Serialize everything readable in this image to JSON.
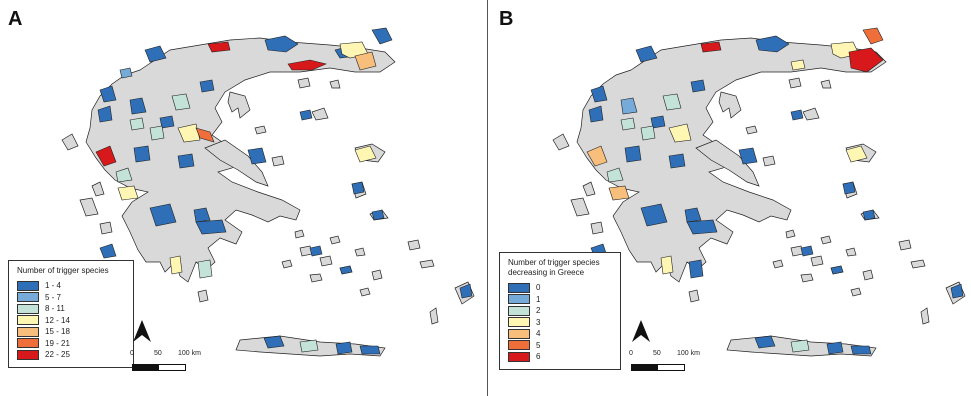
{
  "panels": [
    {
      "letter": "A",
      "legend": {
        "title_lines": [
          "Number of trigger species"
        ],
        "classes": [
          {
            "label": "1 - 4",
            "color": "#2f6fb7"
          },
          {
            "label": "5 - 7",
            "color": "#76aad8"
          },
          {
            "label": "8 - 11",
            "color": "#c3e2d8"
          },
          {
            "label": "12 - 14",
            "color": "#fff6b4"
          },
          {
            "label": "15 - 18",
            "color": "#f8bf7c"
          },
          {
            "label": "19 - 21",
            "color": "#ef6f3a"
          },
          {
            "label": "22 - 25",
            "color": "#d7191c"
          }
        ]
      },
      "scale": {
        "tick_0": "0",
        "tick_1": "50",
        "tick_2": "100 km"
      }
    },
    {
      "letter": "B",
      "legend": {
        "title_lines": [
          "Number of trigger species",
          "decreasing in Greece"
        ],
        "classes": [
          {
            "label": "0",
            "color": "#2f6fb7"
          },
          {
            "label": "1",
            "color": "#76aad8"
          },
          {
            "label": "2",
            "color": "#c3e2d8"
          },
          {
            "label": "3",
            "color": "#fff6b4"
          },
          {
            "label": "4",
            "color": "#f8bf7c"
          },
          {
            "label": "5",
            "color": "#ef6f3a"
          },
          {
            "label": "6",
            "color": "#d7191c"
          }
        ]
      },
      "scale": {
        "tick_0": "0",
        "tick_1": "50",
        "tick_2": "100 km"
      }
    }
  ],
  "colors": {
    "land": "#d9d9d9",
    "outline": "#222222"
  },
  "icons": {
    "north_arrow": "north-arrow-icon"
  }
}
